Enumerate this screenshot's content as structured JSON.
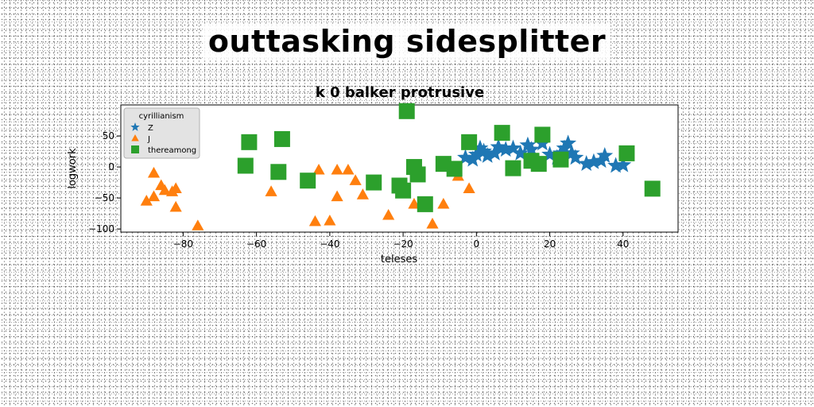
{
  "supertitle": "outtasking sidesplitter",
  "chart_data": {
    "type": "scatter",
    "title": "k 0 balker protrusive",
    "xlabel": "teleses",
    "ylabel": "logwork",
    "xlim": [
      -97,
      55
    ],
    "ylim": [
      -105,
      100
    ],
    "xticks": [
      -80,
      -60,
      -40,
      -20,
      0,
      20,
      40
    ],
    "yticks": [
      -100,
      -50,
      0,
      50
    ],
    "grid": false,
    "legend": {
      "title": "cyrillianism",
      "placement": "top-left"
    },
    "series": [
      {
        "name": "Z",
        "marker": "star",
        "color": "#1f77b4",
        "points": [
          [
            -3,
            15
          ],
          [
            -1,
            12
          ],
          [
            0,
            20
          ],
          [
            1,
            30
          ],
          [
            2,
            25
          ],
          [
            3,
            18
          ],
          [
            5,
            22
          ],
          [
            6,
            32
          ],
          [
            8,
            28
          ],
          [
            10,
            30
          ],
          [
            12,
            22
          ],
          [
            14,
            35
          ],
          [
            15,
            28
          ],
          [
            16,
            10
          ],
          [
            18,
            38
          ],
          [
            20,
            20
          ],
          [
            22,
            15
          ],
          [
            23,
            22
          ],
          [
            24,
            30
          ],
          [
            25,
            38
          ],
          [
            27,
            15
          ],
          [
            30,
            5
          ],
          [
            32,
            8
          ],
          [
            34,
            10
          ],
          [
            35,
            18
          ],
          [
            38,
            2
          ],
          [
            40,
            3
          ],
          [
            26,
            22
          ]
        ]
      },
      {
        "name": "J",
        "marker": "triangle",
        "color": "#ff7f0e",
        "points": [
          [
            -90,
            -55
          ],
          [
            -88,
            -10
          ],
          [
            -88,
            -48
          ],
          [
            -86,
            -30
          ],
          [
            -85,
            -38
          ],
          [
            -83,
            -40
          ],
          [
            -82,
            -35
          ],
          [
            -82,
            -65
          ],
          [
            -76,
            -95
          ],
          [
            -56,
            -40
          ],
          [
            -44,
            -88
          ],
          [
            -43,
            -5
          ],
          [
            -40,
            -87
          ],
          [
            -38,
            -48
          ],
          [
            -38,
            -5
          ],
          [
            -35,
            -5
          ],
          [
            -33,
            -22
          ],
          [
            -31,
            -45
          ],
          [
            -24,
            -78
          ],
          [
            -17,
            -60
          ],
          [
            -12,
            -92
          ],
          [
            -9,
            -60
          ],
          [
            -5,
            -15
          ],
          [
            -2,
            -35
          ]
        ]
      },
      {
        "name": "thereamong",
        "marker": "square",
        "color": "#2ca02c",
        "points": [
          [
            -63,
            2
          ],
          [
            -62,
            40
          ],
          [
            -54,
            -8
          ],
          [
            -53,
            45
          ],
          [
            -46,
            -22
          ],
          [
            -28,
            -25
          ],
          [
            -21,
            -30
          ],
          [
            -20,
            -38
          ],
          [
            -19,
            90
          ],
          [
            -17,
            0
          ],
          [
            -16,
            -12
          ],
          [
            -14,
            -60
          ],
          [
            -9,
            5
          ],
          [
            -6,
            -3
          ],
          [
            -2,
            40
          ],
          [
            7,
            55
          ],
          [
            10,
            -2
          ],
          [
            15,
            10
          ],
          [
            17,
            5
          ],
          [
            18,
            52
          ],
          [
            23,
            12
          ],
          [
            41,
            22
          ],
          [
            48,
            -35
          ]
        ]
      }
    ]
  }
}
